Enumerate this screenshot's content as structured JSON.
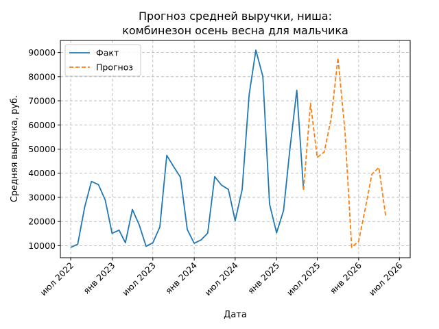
{
  "chart_data": {
    "type": "line",
    "title_lines": [
      "Прогноз средней выручки, ниша:",
      "комбинезон осень весна для мальчика"
    ],
    "xlabel": "Дата",
    "ylabel": "Средняя выручка, руб.",
    "xlim": [
      "2022-05-16",
      "2026-08-18"
    ],
    "ylim": [
      5000,
      95000
    ],
    "yticks": [
      10000,
      20000,
      30000,
      40000,
      50000,
      60000,
      70000,
      80000,
      90000
    ],
    "xticks": [
      {
        "date": "2022-07-01",
        "label": "июл 2022"
      },
      {
        "date": "2023-01-01",
        "label": "янв 2023"
      },
      {
        "date": "2023-07-01",
        "label": "июл 2023"
      },
      {
        "date": "2024-01-01",
        "label": "янв 2024"
      },
      {
        "date": "2024-07-01",
        "label": "июл 2024"
      },
      {
        "date": "2025-01-01",
        "label": "янв 2025"
      },
      {
        "date": "2025-07-01",
        "label": "июл 2025"
      },
      {
        "date": "2026-01-01",
        "label": "янв 2026"
      },
      {
        "date": "2026-07-01",
        "label": "июл 2026"
      }
    ],
    "grid": true,
    "legend_position": "upper-left",
    "series": [
      {
        "name": "Факт",
        "color": "#1f77b4",
        "dash": "solid",
        "points": [
          {
            "x": "2022-07-01",
            "y": 9300
          },
          {
            "x": "2022-08-01",
            "y": 10600
          },
          {
            "x": "2022-09-01",
            "y": 25900
          },
          {
            "x": "2022-10-01",
            "y": 36600
          },
          {
            "x": "2022-11-01",
            "y": 35300
          },
          {
            "x": "2022-12-01",
            "y": 29000
          },
          {
            "x": "2023-01-01",
            "y": 15100
          },
          {
            "x": "2023-02-01",
            "y": 16400
          },
          {
            "x": "2023-03-01",
            "y": 11200
          },
          {
            "x": "2023-04-01",
            "y": 25000
          },
          {
            "x": "2023-05-01",
            "y": 18700
          },
          {
            "x": "2023-06-01",
            "y": 9700
          },
          {
            "x": "2023-07-01",
            "y": 11200
          },
          {
            "x": "2023-08-01",
            "y": 17700
          },
          {
            "x": "2023-09-01",
            "y": 47400
          },
          {
            "x": "2023-10-01",
            "y": 42800
          },
          {
            "x": "2023-11-01",
            "y": 38300
          },
          {
            "x": "2023-12-01",
            "y": 16700
          },
          {
            "x": "2024-01-01",
            "y": 11000
          },
          {
            "x": "2024-02-01",
            "y": 12400
          },
          {
            "x": "2024-03-01",
            "y": 15200
          },
          {
            "x": "2024-04-01",
            "y": 38600
          },
          {
            "x": "2024-05-01",
            "y": 35100
          },
          {
            "x": "2024-06-01",
            "y": 33300
          },
          {
            "x": "2024-07-01",
            "y": 20300
          },
          {
            "x": "2024-08-01",
            "y": 33200
          },
          {
            "x": "2024-09-01",
            "y": 72500
          },
          {
            "x": "2024-10-01",
            "y": 91000
          },
          {
            "x": "2024-11-01",
            "y": 80100
          },
          {
            "x": "2024-12-01",
            "y": 27200
          },
          {
            "x": "2025-01-01",
            "y": 15300
          },
          {
            "x": "2025-02-01",
            "y": 24600
          },
          {
            "x": "2025-03-01",
            "y": 49700
          },
          {
            "x": "2025-04-01",
            "y": 74400
          },
          {
            "x": "2025-05-01",
            "y": 33100
          }
        ]
      },
      {
        "name": "Прогноз",
        "color": "#ff7f0e",
        "dash": "dashed",
        "points": [
          {
            "x": "2025-05-01",
            "y": 33100
          },
          {
            "x": "2025-06-01",
            "y": 69000
          },
          {
            "x": "2025-07-01",
            "y": 46500
          },
          {
            "x": "2025-08-01",
            "y": 48800
          },
          {
            "x": "2025-09-01",
            "y": 62900
          },
          {
            "x": "2025-10-01",
            "y": 87800
          },
          {
            "x": "2025-11-01",
            "y": 57400
          },
          {
            "x": "2025-12-01",
            "y": 9300
          },
          {
            "x": "2026-01-01",
            "y": 11800
          },
          {
            "x": "2026-02-01",
            "y": 26200
          },
          {
            "x": "2026-03-01",
            "y": 39600
          },
          {
            "x": "2026-04-01",
            "y": 42400
          },
          {
            "x": "2026-05-01",
            "y": 22200
          }
        ]
      }
    ]
  }
}
